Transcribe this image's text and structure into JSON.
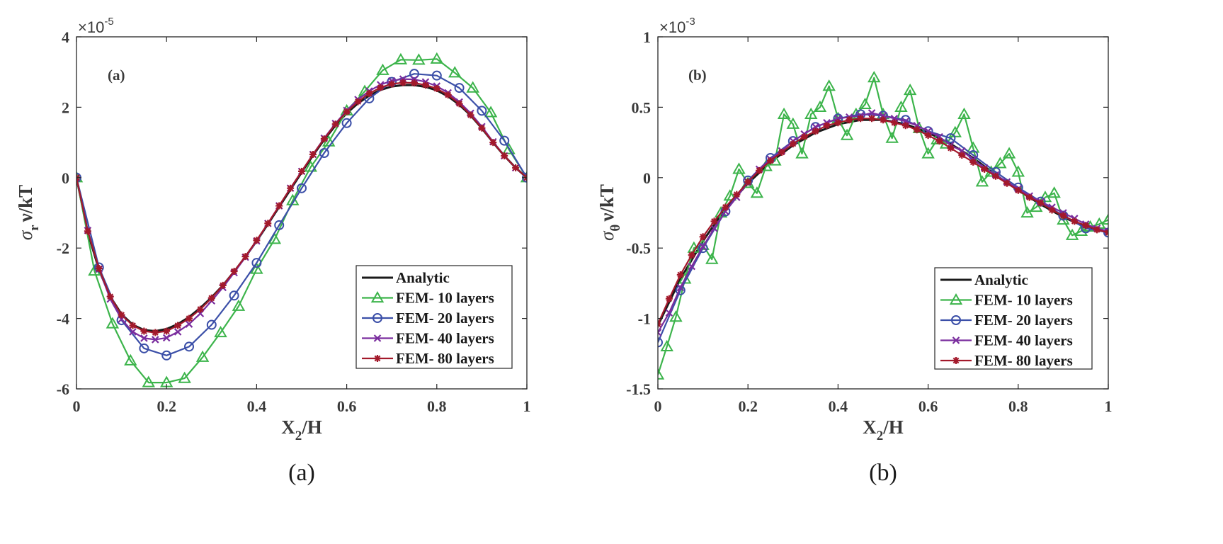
{
  "chart_data": [
    {
      "type": "line",
      "panel_label": "(a)",
      "caption": "(a)",
      "xlabel_main": "X",
      "xlabel_sub": "2",
      "xlabel_tail": "/H",
      "ylabel_main": "σ",
      "ylabel_sub": "r",
      "ylabel_tail": "ν/kT",
      "exponent_label": "×10",
      "exponent_power": "-5",
      "xlim": [
        0,
        1
      ],
      "ylim": [
        -6,
        4
      ],
      "xticks": [
        0,
        0.2,
        0.4,
        0.6,
        0.8,
        1
      ],
      "xtick_labels": [
        "0",
        "0.2",
        "0.4",
        "0.6",
        "0.8",
        "1"
      ],
      "yticks": [
        -6,
        -4,
        -2,
        0,
        2,
        4
      ],
      "ytick_labels": [
        "-6",
        "-4",
        "-2",
        "0",
        "2",
        "4"
      ],
      "grid": false,
      "legend_position": "bottom-right",
      "series": [
        {
          "name": "Analytic",
          "color": "#1a1a1a",
          "marker": "none",
          "x": [
            0,
            0.025,
            0.05,
            0.075,
            0.1,
            0.125,
            0.15,
            0.175,
            0.2,
            0.225,
            0.25,
            0.275,
            0.3,
            0.325,
            0.35,
            0.375,
            0.4,
            0.425,
            0.45,
            0.475,
            0.5,
            0.525,
            0.55,
            0.575,
            0.6,
            0.625,
            0.65,
            0.675,
            0.7,
            0.725,
            0.75,
            0.775,
            0.8,
            0.825,
            0.85,
            0.875,
            0.9,
            0.925,
            0.95,
            0.975,
            1
          ],
          "y": [
            0,
            -1.55,
            -2.62,
            -3.38,
            -3.88,
            -4.18,
            -4.33,
            -4.36,
            -4.3,
            -4.16,
            -3.96,
            -3.7,
            -3.4,
            -3.06,
            -2.67,
            -2.25,
            -1.8,
            -1.32,
            -0.83,
            -0.34,
            0.15,
            0.63,
            1.08,
            1.48,
            1.83,
            2.11,
            2.33,
            2.49,
            2.59,
            2.63,
            2.63,
            2.58,
            2.48,
            2.31,
            2.07,
            1.77,
            1.4,
            1.0,
            0.62,
            0.28,
            0
          ]
        },
        {
          "name": "FEM- 10 layers",
          "color": "#3cb44b",
          "marker": "triangle",
          "x": [
            0,
            0.04,
            0.08,
            0.12,
            0.16,
            0.2,
            0.24,
            0.28,
            0.32,
            0.36,
            0.4,
            0.44,
            0.48,
            0.52,
            0.56,
            0.6,
            0.64,
            0.68,
            0.72,
            0.76,
            0.8,
            0.84,
            0.88,
            0.92,
            0.96,
            1
          ],
          "y": [
            0,
            -2.65,
            -4.15,
            -5.2,
            -5.82,
            -5.82,
            -5.7,
            -5.1,
            -4.4,
            -3.65,
            -2.6,
            -1.75,
            -0.65,
            0.3,
            1.02,
            1.9,
            2.45,
            3.05,
            3.35,
            3.34,
            3.37,
            2.98,
            2.55,
            1.85,
            0.8,
            0
          ]
        },
        {
          "name": "FEM- 20 layers",
          "color": "#3b4fa8",
          "marker": "circle",
          "x": [
            0,
            0.05,
            0.1,
            0.15,
            0.2,
            0.25,
            0.3,
            0.35,
            0.4,
            0.45,
            0.5,
            0.55,
            0.6,
            0.65,
            0.7,
            0.75,
            0.8,
            0.85,
            0.9,
            0.95,
            1
          ],
          "y": [
            0,
            -2.55,
            -4.05,
            -4.85,
            -5.05,
            -4.8,
            -4.18,
            -3.35,
            -2.42,
            -1.35,
            -0.3,
            0.7,
            1.55,
            2.25,
            2.72,
            2.95,
            2.9,
            2.55,
            1.9,
            1.05,
            0
          ]
        },
        {
          "name": "FEM- 40 layers",
          "color": "#7a2d9e",
          "marker": "x",
          "x": [
            0,
            0.025,
            0.05,
            0.075,
            0.1,
            0.125,
            0.15,
            0.175,
            0.2,
            0.225,
            0.25,
            0.275,
            0.3,
            0.325,
            0.35,
            0.375,
            0.4,
            0.425,
            0.45,
            0.475,
            0.5,
            0.525,
            0.55,
            0.575,
            0.6,
            0.625,
            0.65,
            0.675,
            0.7,
            0.725,
            0.75,
            0.775,
            0.8,
            0.825,
            0.85,
            0.875,
            0.9,
            0.925,
            0.95,
            0.975,
            1
          ],
          "y": [
            0,
            -1.5,
            -2.6,
            -3.45,
            -4.02,
            -4.38,
            -4.56,
            -4.6,
            -4.55,
            -4.38,
            -4.16,
            -3.86,
            -3.5,
            -3.12,
            -2.7,
            -2.26,
            -1.8,
            -1.3,
            -0.8,
            -0.3,
            0.18,
            0.66,
            1.12,
            1.54,
            1.91,
            2.22,
            2.46,
            2.64,
            2.75,
            2.8,
            2.79,
            2.72,
            2.6,
            2.41,
            2.15,
            1.83,
            1.45,
            1.02,
            0.62,
            0.28,
            0
          ]
        },
        {
          "name": "FEM- 80 layers",
          "color": "#a3192b",
          "marker": "star",
          "x": [
            0,
            0.025,
            0.05,
            0.075,
            0.1,
            0.125,
            0.15,
            0.175,
            0.2,
            0.225,
            0.25,
            0.275,
            0.3,
            0.325,
            0.35,
            0.375,
            0.4,
            0.425,
            0.45,
            0.475,
            0.5,
            0.525,
            0.55,
            0.575,
            0.6,
            0.625,
            0.65,
            0.675,
            0.7,
            0.725,
            0.75,
            0.775,
            0.8,
            0.825,
            0.85,
            0.875,
            0.9,
            0.925,
            0.95,
            0.975,
            1
          ],
          "y": [
            0,
            -1.52,
            -2.58,
            -3.38,
            -3.9,
            -4.2,
            -4.36,
            -4.4,
            -4.36,
            -4.2,
            -4.0,
            -3.74,
            -3.42,
            -3.06,
            -2.66,
            -2.24,
            -1.78,
            -1.3,
            -0.8,
            -0.3,
            0.18,
            0.66,
            1.1,
            1.52,
            1.87,
            2.16,
            2.39,
            2.56,
            2.66,
            2.7,
            2.69,
            2.63,
            2.53,
            2.35,
            2.1,
            1.78,
            1.41,
            1.0,
            0.62,
            0.28,
            0
          ]
        }
      ]
    },
    {
      "type": "line",
      "panel_label": "(b)",
      "caption": "(b)",
      "xlabel_main": "X",
      "xlabel_sub": "2",
      "xlabel_tail": "/H",
      "ylabel_main": "σ",
      "ylabel_sub": "θ",
      "ylabel_tail": "ν/kT",
      "exponent_label": "×10",
      "exponent_power": "-3",
      "xlim": [
        0,
        1
      ],
      "ylim": [
        -1.5,
        1
      ],
      "xticks": [
        0,
        0.2,
        0.4,
        0.6,
        0.8,
        1
      ],
      "xtick_labels": [
        "0",
        "0.2",
        "0.4",
        "0.6",
        "0.8",
        "1"
      ],
      "yticks": [
        -1.5,
        -1,
        -0.5,
        0,
        0.5,
        1
      ],
      "ytick_labels": [
        "-1.5",
        "-1",
        "-0.5",
        "0",
        "0.5",
        "1"
      ],
      "grid": false,
      "legend_position": "bottom-right",
      "series": [
        {
          "name": "Analytic",
          "color": "#1a1a1a",
          "marker": "none",
          "x": [
            0,
            0.05,
            0.1,
            0.15,
            0.2,
            0.25,
            0.3,
            0.35,
            0.4,
            0.45,
            0.5,
            0.55,
            0.6,
            0.65,
            0.7,
            0.75,
            0.8,
            0.85,
            0.9,
            0.95,
            1
          ],
          "y": [
            -1.05,
            -0.72,
            -0.45,
            -0.22,
            -0.04,
            0.11,
            0.23,
            0.32,
            0.38,
            0.41,
            0.41,
            0.38,
            0.32,
            0.24,
            0.14,
            0.02,
            -0.09,
            -0.19,
            -0.28,
            -0.35,
            -0.38
          ]
        },
        {
          "name": "FEM- 10 layers",
          "color": "#3cb44b",
          "marker": "triangle",
          "x": [
            0,
            0.02,
            0.04,
            0.06,
            0.08,
            0.1,
            0.12,
            0.14,
            0.16,
            0.18,
            0.2,
            0.22,
            0.24,
            0.26,
            0.28,
            0.3,
            0.32,
            0.34,
            0.36,
            0.38,
            0.4,
            0.42,
            0.44,
            0.46,
            0.48,
            0.5,
            0.52,
            0.54,
            0.56,
            0.58,
            0.6,
            0.62,
            0.64,
            0.66,
            0.68,
            0.7,
            0.72,
            0.74,
            0.76,
            0.78,
            0.8,
            0.82,
            0.84,
            0.86,
            0.88,
            0.9,
            0.92,
            0.94,
            0.96,
            0.98,
            1
          ],
          "y": [
            -1.4,
            -1.2,
            -0.99,
            -0.72,
            -0.5,
            -0.48,
            -0.58,
            -0.25,
            -0.13,
            0.06,
            -0.04,
            -0.11,
            0.08,
            0.12,
            0.45,
            0.38,
            0.17,
            0.45,
            0.5,
            0.65,
            0.42,
            0.3,
            0.45,
            0.52,
            0.71,
            0.45,
            0.28,
            0.5,
            0.62,
            0.35,
            0.17,
            0.27,
            0.24,
            0.32,
            0.45,
            0.21,
            -0.03,
            0.04,
            0.1,
            0.17,
            0.04,
            -0.25,
            -0.21,
            -0.14,
            -0.11,
            -0.3,
            -0.41,
            -0.38,
            -0.35,
            -0.33,
            -0.3
          ]
        },
        {
          "name": "FEM- 20 layers",
          "color": "#3b4fa8",
          "marker": "circle",
          "x": [
            0,
            0.05,
            0.1,
            0.15,
            0.2,
            0.25,
            0.3,
            0.35,
            0.4,
            0.45,
            0.5,
            0.55,
            0.6,
            0.65,
            0.7,
            0.75,
            0.8,
            0.85,
            0.9,
            0.95,
            1
          ],
          "y": [
            -1.17,
            -0.8,
            -0.5,
            -0.24,
            -0.02,
            0.14,
            0.26,
            0.36,
            0.42,
            0.45,
            0.44,
            0.41,
            0.33,
            0.28,
            0.16,
            0.04,
            -0.07,
            -0.17,
            -0.27,
            -0.36,
            -0.39
          ]
        },
        {
          "name": "FEM- 40 layers",
          "color": "#7a2d9e",
          "marker": "x",
          "x": [
            0,
            0.025,
            0.05,
            0.075,
            0.1,
            0.125,
            0.15,
            0.175,
            0.2,
            0.225,
            0.25,
            0.275,
            0.3,
            0.325,
            0.35,
            0.375,
            0.4,
            0.425,
            0.45,
            0.475,
            0.5,
            0.525,
            0.55,
            0.575,
            0.6,
            0.625,
            0.65,
            0.675,
            0.7,
            0.725,
            0.75,
            0.775,
            0.8,
            0.825,
            0.85,
            0.875,
            0.9,
            0.925,
            0.95,
            0.975,
            1
          ],
          "y": [
            -1.1,
            -0.96,
            -0.78,
            -0.63,
            -0.49,
            -0.36,
            -0.24,
            -0.14,
            -0.03,
            0.06,
            0.13,
            0.19,
            0.26,
            0.31,
            0.36,
            0.39,
            0.42,
            0.43,
            0.44,
            0.46,
            0.44,
            0.42,
            0.4,
            0.37,
            0.33,
            0.29,
            0.23,
            0.19,
            0.13,
            0.07,
            0.02,
            -0.03,
            -0.08,
            -0.13,
            -0.17,
            -0.21,
            -0.25,
            -0.29,
            -0.33,
            -0.36,
            -0.38
          ]
        },
        {
          "name": "FEM- 80 layers",
          "color": "#a3192b",
          "marker": "star",
          "x": [
            0,
            0.025,
            0.05,
            0.075,
            0.1,
            0.125,
            0.15,
            0.175,
            0.2,
            0.225,
            0.25,
            0.275,
            0.3,
            0.325,
            0.35,
            0.375,
            0.4,
            0.425,
            0.45,
            0.475,
            0.5,
            0.525,
            0.55,
            0.575,
            0.6,
            0.625,
            0.65,
            0.675,
            0.7,
            0.725,
            0.75,
            0.775,
            0.8,
            0.825,
            0.85,
            0.875,
            0.9,
            0.925,
            0.95,
            0.975,
            1
          ],
          "y": [
            -1.04,
            -0.86,
            -0.69,
            -0.55,
            -0.42,
            -0.31,
            -0.21,
            -0.12,
            -0.03,
            0.05,
            0.12,
            0.18,
            0.24,
            0.29,
            0.33,
            0.37,
            0.39,
            0.41,
            0.42,
            0.42,
            0.41,
            0.39,
            0.37,
            0.34,
            0.3,
            0.26,
            0.21,
            0.16,
            0.11,
            0.06,
            0.01,
            -0.04,
            -0.09,
            -0.14,
            -0.18,
            -0.23,
            -0.27,
            -0.31,
            -0.34,
            -0.37,
            -0.39
          ]
        }
      ]
    }
  ]
}
